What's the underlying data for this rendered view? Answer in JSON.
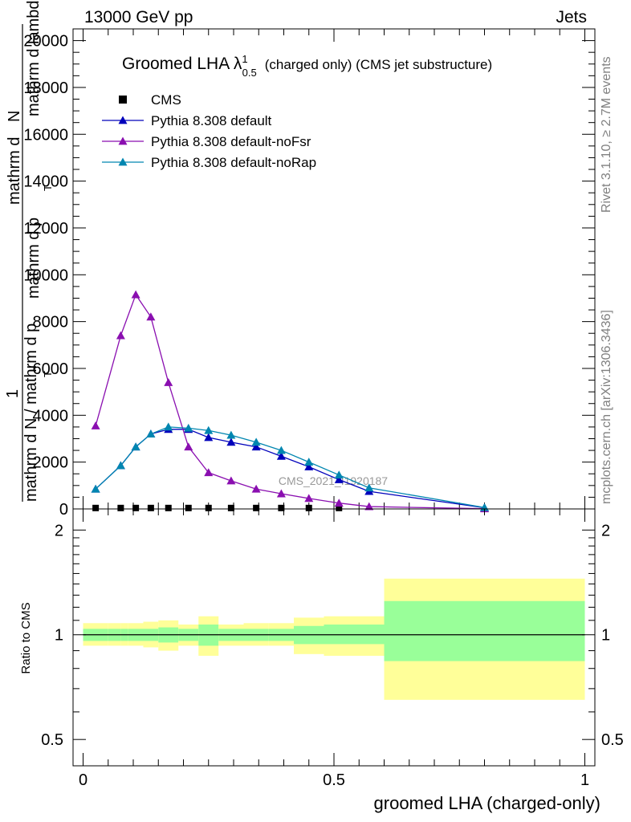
{
  "header": {
    "energy": "13000 GeV pp",
    "category": "Jets"
  },
  "side_labels": {
    "rivet": "Rivet 3.1.10, ≥ 2.7M events",
    "mcplots": "mcplots.cern.ch [arXiv:1306.3436]"
  },
  "watermark": "CMS_2021_I1920187",
  "colors": {
    "cms": "#000000",
    "default": "#0000bb",
    "nofsr": "#8a0fb0",
    "norap": "#0086b0",
    "band_inner": "#99ff99",
    "band_outer": "#ffff99"
  },
  "chart_data": [
    {
      "type": "line",
      "title": "Groomed LHA λ",
      "title_sup": "1",
      "title_sub": "0.5",
      "title_rest": "(charged only) (CMS jet substructure)",
      "ylabel": "mathrm dN / mathrm d p_T mathrm d lambda  1 / mathrm d N / mathrm d p_T",
      "ylabel_lines": [
        "mathrm d",
        "N",
        "mathrm d p",
        "mathrm d lambda",
        "T",
        "1",
        "mathrm d N / mathrm d p",
        "T"
      ],
      "xlim": [
        -0.02,
        1.02
      ],
      "ylim": [
        0,
        20500
      ],
      "yticks": [
        0,
        2000,
        4000,
        6000,
        8000,
        10000,
        12000,
        14000,
        16000,
        18000,
        20000
      ],
      "ytick_labels": [
        "0",
        "2000",
        "4000",
        "6000",
        "8000",
        "10000",
        "12000",
        "14000",
        "16000",
        "18000",
        "20000"
      ],
      "legend_placement": "top-left",
      "series": [
        {
          "name": "CMS",
          "marker": "square",
          "x": [
            0.025,
            0.075,
            0.105,
            0.135,
            0.17,
            0.21,
            0.25,
            0.295,
            0.345,
            0.395,
            0.45,
            0.51
          ],
          "y": [
            40,
            40,
            40,
            40,
            40,
            40,
            40,
            40,
            40,
            40,
            40,
            40
          ]
        },
        {
          "name": "Pythia 8.308 default",
          "marker": "triangle",
          "x": [
            0.025,
            0.075,
            0.105,
            0.135,
            0.17,
            0.21,
            0.25,
            0.295,
            0.345,
            0.395,
            0.45,
            0.51,
            0.57,
            0.8
          ],
          "y": [
            850,
            1850,
            2650,
            3200,
            3400,
            3400,
            3050,
            2850,
            2650,
            2250,
            1800,
            1250,
            750,
            50
          ]
        },
        {
          "name": "Pythia 8.308 default-noFsr",
          "marker": "triangle",
          "x": [
            0.025,
            0.075,
            0.105,
            0.135,
            0.17,
            0.21,
            0.25,
            0.295,
            0.345,
            0.395,
            0.45,
            0.51,
            0.57,
            0.8
          ],
          "y": [
            3550,
            7400,
            9150,
            8200,
            5400,
            2650,
            1550,
            1200,
            850,
            650,
            450,
            250,
            100,
            10
          ]
        },
        {
          "name": "Pythia 8.308 default-noRap",
          "marker": "triangle",
          "x": [
            0.025,
            0.075,
            0.105,
            0.135,
            0.17,
            0.21,
            0.25,
            0.295,
            0.345,
            0.395,
            0.45,
            0.51,
            0.57,
            0.8
          ],
          "y": [
            850,
            1850,
            2650,
            3200,
            3500,
            3450,
            3350,
            3150,
            2850,
            2500,
            2000,
            1450,
            900,
            60
          ]
        }
      ]
    },
    {
      "type": "area",
      "ylabel": "Ratio to CMS",
      "xlabel": "groomed LHA (charged-only)",
      "xticks": [
        0,
        0.5,
        1
      ],
      "xtick_labels": [
        "0",
        "0.5",
        "1"
      ],
      "yticks": [
        0.5,
        1,
        2
      ],
      "ytick_labels": [
        "0.5",
        "1",
        "2"
      ],
      "ylim": [
        0.42,
        2.3
      ],
      "scale": "log",
      "bins": [
        {
          "lo": 0.0,
          "hi": 0.05,
          "in_lo": 0.96,
          "in_hi": 1.04,
          "out_lo": 0.93,
          "out_hi": 1.08
        },
        {
          "lo": 0.05,
          "hi": 0.075,
          "in_lo": 0.96,
          "in_hi": 1.04,
          "out_lo": 0.93,
          "out_hi": 1.08
        },
        {
          "lo": 0.075,
          "hi": 0.09,
          "in_lo": 0.96,
          "in_hi": 1.04,
          "out_lo": 0.93,
          "out_hi": 1.08
        },
        {
          "lo": 0.09,
          "hi": 0.12,
          "in_lo": 0.96,
          "in_hi": 1.04,
          "out_lo": 0.93,
          "out_hi": 1.08
        },
        {
          "lo": 0.12,
          "hi": 0.15,
          "in_lo": 0.96,
          "in_hi": 1.04,
          "out_lo": 0.92,
          "out_hi": 1.09
        },
        {
          "lo": 0.15,
          "hi": 0.19,
          "in_lo": 0.95,
          "in_hi": 1.05,
          "out_lo": 0.9,
          "out_hi": 1.1
        },
        {
          "lo": 0.19,
          "hi": 0.23,
          "in_lo": 0.96,
          "in_hi": 1.04,
          "out_lo": 0.93,
          "out_hi": 1.07
        },
        {
          "lo": 0.23,
          "hi": 0.27,
          "in_lo": 0.93,
          "in_hi": 1.07,
          "out_lo": 0.87,
          "out_hi": 1.13
        },
        {
          "lo": 0.27,
          "hi": 0.32,
          "in_lo": 0.96,
          "in_hi": 1.04,
          "out_lo": 0.93,
          "out_hi": 1.07
        },
        {
          "lo": 0.32,
          "hi": 0.37,
          "in_lo": 0.96,
          "in_hi": 1.04,
          "out_lo": 0.93,
          "out_hi": 1.08
        },
        {
          "lo": 0.37,
          "hi": 0.42,
          "in_lo": 0.96,
          "in_hi": 1.04,
          "out_lo": 0.93,
          "out_hi": 1.08
        },
        {
          "lo": 0.42,
          "hi": 0.48,
          "in_lo": 0.94,
          "in_hi": 1.06,
          "out_lo": 0.88,
          "out_hi": 1.12
        },
        {
          "lo": 0.48,
          "hi": 0.6,
          "in_lo": 0.94,
          "in_hi": 1.07,
          "out_lo": 0.87,
          "out_hi": 1.13
        },
        {
          "lo": 0.6,
          "hi": 1.0,
          "in_lo": 0.84,
          "in_hi": 1.25,
          "out_lo": 0.65,
          "out_hi": 1.45
        }
      ]
    }
  ]
}
